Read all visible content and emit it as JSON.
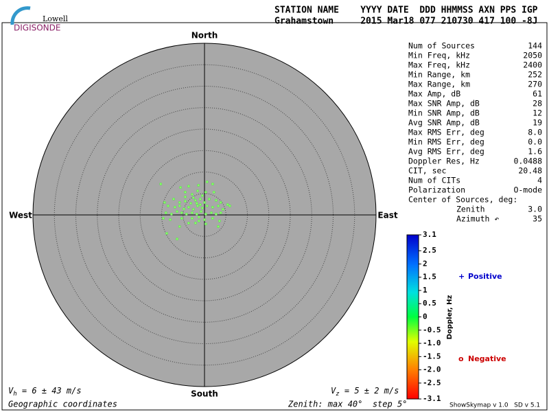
{
  "header": {
    "logo_top": "Lowell",
    "logo_bottom": "DIGISONDE",
    "columns": "STATION NAME    YYYY DATE  DDD HHMMSS AXN PPS IGP",
    "values": "Grahamstown     2015 Mar18 077 210730 417 100 -8J"
  },
  "stats": [
    {
      "label": "Num of Sources",
      "value": "144"
    },
    {
      "label": "Min Freq, kHz",
      "value": "2050"
    },
    {
      "label": "Max Freq, kHz",
      "value": "2400"
    },
    {
      "label": "Min Range, km",
      "value": "252"
    },
    {
      "label": "Max Range, km",
      "value": "270"
    },
    {
      "label": "Max Amp, dB",
      "value": "61"
    },
    {
      "label": "Max SNR Amp, dB",
      "value": "28"
    },
    {
      "label": "Min SNR Amp, dB",
      "value": "12"
    },
    {
      "label": "Avg SNR Amp, dB",
      "value": "19"
    },
    {
      "label": "Max RMS Err, deg",
      "value": "8.0"
    },
    {
      "label": "Min RMS Err, deg",
      "value": "0.0"
    },
    {
      "label": "Avg RMS Err, deg",
      "value": "1.6"
    },
    {
      "label": "Doppler Res, Hz",
      "value": "0.0488"
    },
    {
      "label": "CIT, sec",
      "value": "20.48"
    },
    {
      "label": "Num of CITs",
      "value": "4"
    },
    {
      "label": "Polarization",
      "value": "O-mode"
    }
  ],
  "center": {
    "title": "Center of Sources, deg:",
    "rows": [
      {
        "label": "Zenith",
        "value": "3.0"
      },
      {
        "label": "Azimuth ↶",
        "value": "35"
      }
    ]
  },
  "chart_data": {
    "type": "skymap",
    "directions": {
      "north": "North",
      "south": "South",
      "west": "West",
      "east": "East"
    },
    "zenith_max": 40,
    "zenith_step": 5,
    "color": "#88ff66",
    "x": [
      -10.2,
      -5.6,
      -3.7,
      -1.4,
      0.6,
      1.9,
      -1.6,
      -2.9,
      -4.5,
      0.3,
      2.2,
      -7.2,
      -5.8,
      -4.5,
      -3.2,
      -2.1,
      -1.0,
      0.0,
      1.1,
      2.7,
      3.8,
      5.4,
      -9.3,
      -8.5,
      -6.9,
      -5.8,
      -4.8,
      -3.7,
      -2.6,
      -1.6,
      -0.5,
      0.6,
      1.9,
      3.2,
      4.3,
      5.9,
      -9.0,
      -7.7,
      -6.4,
      -5.3,
      -4.2,
      -2.9,
      -1.8,
      -0.8,
      0.3,
      1.6,
      2.7,
      3.8,
      -9.6,
      -8.0,
      -5.3,
      -2.9,
      -1.3,
      0.0,
      1.9,
      3.5,
      -8.8,
      -6.4,
      -1.3,
      -2.1,
      -3.7,
      0.3,
      3.2,
      -5.8,
      -4.5,
      -0.5,
      -2.6,
      -1.8,
      -1.0
    ],
    "y": [
      7.2,
      6.4,
      6.7,
      6.9,
      7.7,
      7.2,
      5.6,
      4.8,
      4.2,
      5.3,
      5.3,
      3.7,
      2.9,
      3.2,
      2.7,
      3.4,
      3.7,
      2.9,
      3.7,
      3.4,
      2.9,
      2.4,
      2.9,
      2.1,
      1.8,
      2.1,
      1.4,
      1.8,
      1.3,
      2.1,
      1.6,
      2.1,
      1.8,
      2.1,
      1.3,
      2.1,
      0.5,
      0.2,
      0.8,
      0.5,
      0.2,
      0.5,
      0.2,
      0.8,
      0.2,
      0.5,
      0.2,
      0.5,
      -0.8,
      -1.1,
      -0.8,
      -0.8,
      -0.5,
      -1.1,
      -0.8,
      -1.4,
      -4.3,
      -5.6,
      -1.4,
      -1.9,
      -1.9,
      -2.1,
      -2.7,
      -2.7,
      5.3,
      4.5,
      4.0,
      2.7,
      2.4
    ]
  },
  "colorbar": {
    "title": "Doppler, Hz",
    "lim": [
      -3.1,
      3.1
    ],
    "ticks": [
      3.1,
      2.5,
      2,
      1.5,
      1,
      0.5,
      0,
      -0.5,
      {
        "value": -1,
        "label": "-1.0"
      },
      -1.5,
      {
        "value": -2,
        "label": "-2.0"
      },
      -2.5,
      -3.1
    ]
  },
  "legend": {
    "positive_symbol": "+",
    "positive": "Positive",
    "negative_symbol": "o",
    "negative": "Negative"
  },
  "footer": {
    "vh_symbol": "V",
    "vh_sub": "h",
    "vh_text": " = 6 ± 43 m/s",
    "vz_symbol": "V",
    "vz_sub": "z",
    "vz_text": " = 5 ± 2 m/s",
    "coords": "Geographic coordinates",
    "zenith": "Zenith: max 40°  step 5°",
    "version": "ShowSkymap v 1.0   SD v 5.1"
  }
}
